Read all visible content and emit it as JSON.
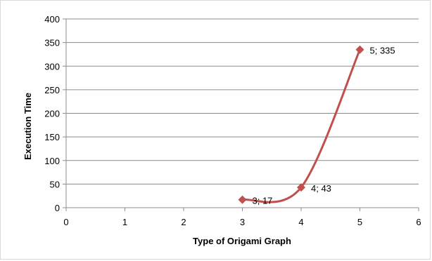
{
  "chart_data": {
    "type": "scatter",
    "title": "",
    "xlabel": "Type of Origami Graph",
    "ylabel": "Execution Time",
    "xlim": [
      0,
      6
    ],
    "ylim": [
      0,
      400
    ],
    "x_ticks": [
      0,
      1,
      2,
      3,
      4,
      5,
      6
    ],
    "y_ticks": [
      0,
      50,
      100,
      150,
      200,
      250,
      300,
      350,
      400
    ],
    "grid": true,
    "legend": "none",
    "smooth_line": true,
    "marker": "diamond",
    "series": [
      {
        "color": "#c0504d",
        "points": [
          {
            "x": 3,
            "y": 17,
            "label": "3; 17"
          },
          {
            "x": 4,
            "y": 43,
            "label": "4; 43"
          },
          {
            "x": 5,
            "y": 335,
            "label": "5; 335"
          }
        ]
      }
    ]
  }
}
